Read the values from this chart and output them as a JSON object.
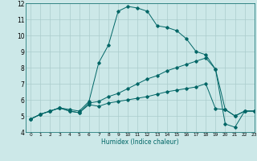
{
  "xlabel": "Humidex (Indice chaleur)",
  "xlim": [
    -0.5,
    23
  ],
  "ylim": [
    4,
    12
  ],
  "bg_color": "#cce8e8",
  "grid_color": "#aacccc",
  "line_color": "#006666",
  "line1_y": [
    4.8,
    5.1,
    5.3,
    5.5,
    5.4,
    5.3,
    5.9,
    8.3,
    9.4,
    11.5,
    11.8,
    11.7,
    11.5,
    10.6,
    10.5,
    10.3,
    9.8,
    9.0,
    8.8,
    7.9,
    4.5,
    4.3,
    5.3,
    5.3
  ],
  "line2_y": [
    4.8,
    5.1,
    5.3,
    5.5,
    5.3,
    5.2,
    5.8,
    5.9,
    6.2,
    6.4,
    6.7,
    7.0,
    7.3,
    7.5,
    7.8,
    8.0,
    8.2,
    8.4,
    8.6,
    7.9,
    5.4,
    5.0,
    5.3,
    5.3
  ],
  "line3_y": [
    4.8,
    5.1,
    5.3,
    5.5,
    5.3,
    5.2,
    5.7,
    5.6,
    5.8,
    5.9,
    6.0,
    6.1,
    6.2,
    6.35,
    6.5,
    6.6,
    6.7,
    6.8,
    7.0,
    5.45,
    5.4,
    5.0,
    5.3,
    5.3
  ]
}
